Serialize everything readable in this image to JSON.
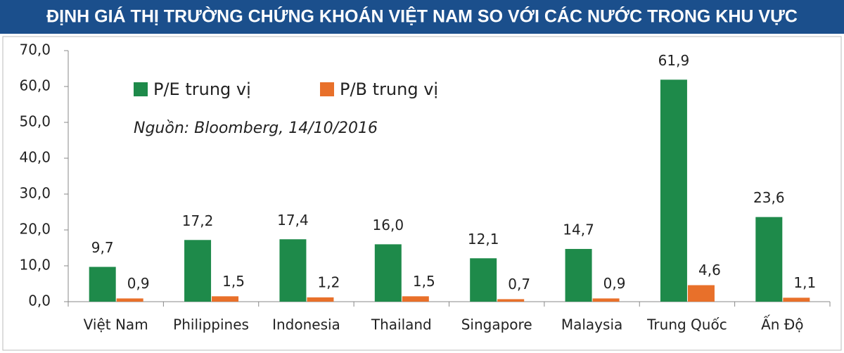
{
  "chart_data": {
    "type": "bar",
    "title": "ĐỊNH GIÁ THỊ TRƯỜNG CHỨNG KHOÁN VIỆT NAM SO VỚI CÁC NƯỚC TRONG KHU VỰC",
    "source": "Nguồn: Bloomberg, 14/10/2016",
    "categories": [
      "Việt Nam",
      "Philippines",
      "Indonesia",
      "Thailand",
      "Singapore",
      "Malaysia",
      "Trung Quốc",
      "Ấn Độ"
    ],
    "series": [
      {
        "name": "P/E trung vị",
        "color": "#1e8a4a",
        "values": [
          9.7,
          17.2,
          17.4,
          16.0,
          12.1,
          14.7,
          61.9,
          23.6
        ],
        "value_labels": [
          "9,7",
          "17,2",
          "17,4",
          "16,0",
          "12,1",
          "14,7",
          "61,9",
          "23,6"
        ]
      },
      {
        "name": "P/B trung vị",
        "color": "#e8702a",
        "values": [
          0.9,
          1.5,
          1.2,
          1.5,
          0.7,
          0.9,
          4.6,
          1.1
        ],
        "value_labels": [
          "0,9",
          "1,5",
          "1,2",
          "1,5",
          "0,7",
          "0,9",
          "4,6",
          "1,1"
        ]
      }
    ],
    "ylim": [
      0,
      70
    ],
    "yticks": [
      {
        "value": 0,
        "label": "0,0"
      },
      {
        "value": 10,
        "label": "10,0"
      },
      {
        "value": 20,
        "label": "20,0"
      },
      {
        "value": 30,
        "label": "30,0"
      },
      {
        "value": 40,
        "label": "40,0"
      },
      {
        "value": 50,
        "label": "50,0"
      },
      {
        "value": 60,
        "label": "60,0"
      },
      {
        "value": 70,
        "label": "70,0"
      }
    ]
  }
}
